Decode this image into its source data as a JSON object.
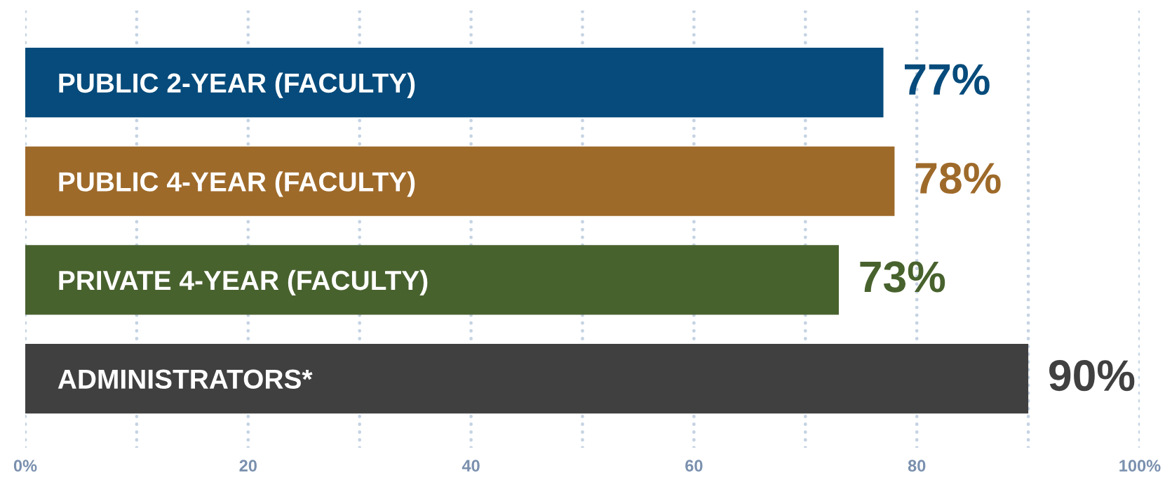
{
  "chart_data": {
    "type": "bar",
    "orientation": "horizontal",
    "categories": [
      "PUBLIC 2-YEAR (FACULTY)",
      "PUBLIC 4-YEAR (FACULTY)",
      "PRIVATE 4-YEAR (FACULTY)",
      "ADMINISTRATORS*"
    ],
    "values": [
      77,
      78,
      73,
      90
    ],
    "colors": [
      "#064b7b",
      "#9e6a2a",
      "#48622e",
      "#404040"
    ],
    "value_labels": [
      "77%",
      "78%",
      "73%",
      "90%"
    ],
    "xlim": [
      0,
      100
    ],
    "xticks": [
      {
        "value": 0,
        "label": "0%"
      },
      {
        "value": 10,
        "label": null
      },
      20,
      {
        "value": 30,
        "label": null
      },
      40,
      {
        "value": 50,
        "label": null
      },
      60,
      {
        "value": 70,
        "label": null
      },
      80,
      {
        "value": 90,
        "label": null
      },
      {
        "value": 100,
        "label": "100%"
      }
    ],
    "grid": "x"
  }
}
